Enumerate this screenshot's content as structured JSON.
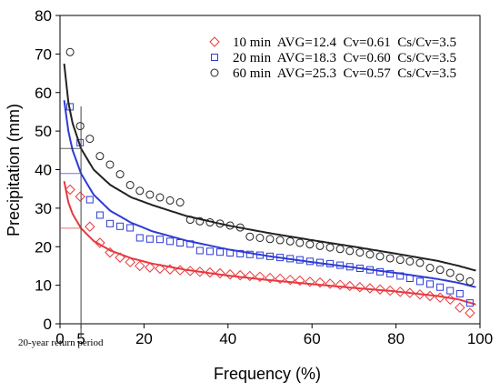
{
  "chart_data": {
    "type": "scatter",
    "title": "",
    "xlabel": "Frequency (%)",
    "ylabel": "Precipitation (mm)",
    "xlim": [
      0,
      100
    ],
    "ylim": [
      0,
      80
    ],
    "xticks": [
      0,
      20,
      40,
      60,
      80,
      100
    ],
    "xtick_labels": [
      "0",
      "20",
      "40",
      "60",
      "80",
      "100"
    ],
    "extra_xtick": {
      "value": 5,
      "label": "5"
    },
    "yticks": [
      0,
      10,
      20,
      30,
      40,
      50,
      60,
      70,
      80
    ],
    "ytick_labels": [
      "0",
      "10",
      "20",
      "30",
      "40",
      "50",
      "60",
      "70",
      "80"
    ],
    "grid": false,
    "legend_position": "top-right",
    "annotation": {
      "text": "20-year return period",
      "x": 5
    },
    "series": [
      {
        "name": "10 min  AVG=12.4  Cv=0.61  Cs/Cv=3.5",
        "color": "#e8383d",
        "marker": "diamond",
        "x": [
          2.4,
          4.8,
          7.1,
          9.5,
          11.9,
          14.3,
          16.7,
          19.0,
          21.4,
          23.8,
          26.2,
          28.6,
          31.0,
          33.3,
          35.7,
          38.1,
          40.5,
          42.9,
          45.2,
          47.6,
          50.0,
          52.4,
          54.8,
          57.1,
          59.5,
          61.9,
          64.3,
          66.7,
          69.0,
          71.4,
          73.8,
          76.2,
          78.6,
          81.0,
          83.3,
          85.7,
          88.1,
          90.5,
          92.9,
          95.2,
          97.6
        ],
        "values": [
          34.8,
          33.0,
          25.2,
          21.0,
          18.5,
          17.2,
          16.0,
          15.0,
          14.6,
          14.3,
          14.1,
          13.9,
          13.7,
          13.5,
          13.3,
          13.1,
          12.8,
          12.6,
          12.4,
          12.2,
          11.9,
          11.7,
          11.4,
          11.2,
          10.9,
          10.7,
          10.4,
          10.1,
          9.8,
          9.5,
          9.2,
          8.9,
          8.6,
          8.3,
          8.0,
          7.6,
          7.2,
          6.8,
          6.3,
          4.2,
          2.8
        ],
        "fit_curve": {
          "x": [
            1,
            2,
            3,
            5,
            8,
            12,
            17,
            22,
            30,
            40,
            50,
            60,
            70,
            80,
            90,
            95,
            99
          ],
          "values": [
            37.0,
            31.5,
            28.5,
            24.8,
            21.5,
            19.0,
            17.0,
            15.6,
            14.0,
            12.5,
            11.3,
            10.3,
            9.3,
            8.4,
            7.2,
            6.3,
            5.0
          ]
        }
      },
      {
        "name": "20 min  AVG=18.3  Cv=0.60  Cs/Cv=3.5",
        "color": "#2e3bd6",
        "marker": "square",
        "x": [
          2.4,
          4.8,
          7.1,
          9.5,
          11.9,
          14.3,
          16.7,
          19.0,
          21.4,
          23.8,
          26.2,
          28.6,
          31.0,
          33.3,
          35.7,
          38.1,
          40.5,
          42.9,
          45.2,
          47.6,
          50.0,
          52.4,
          54.8,
          57.1,
          59.5,
          61.9,
          64.3,
          66.7,
          69.0,
          71.4,
          73.8,
          76.2,
          78.6,
          81.0,
          83.3,
          85.7,
          88.1,
          90.5,
          92.9,
          95.2,
          97.6
        ],
        "values": [
          56.3,
          47.0,
          32.2,
          28.2,
          26.0,
          25.3,
          24.9,
          22.3,
          22.0,
          21.9,
          21.4,
          21.0,
          20.7,
          19.0,
          18.8,
          18.6,
          18.4,
          18.2,
          18.0,
          17.8,
          17.5,
          17.2,
          16.9,
          16.6,
          16.2,
          15.9,
          15.6,
          15.2,
          14.8,
          14.4,
          14.0,
          13.5,
          13.0,
          12.4,
          11.8,
          11.0,
          10.3,
          9.5,
          8.6,
          7.8,
          5.4
        ],
        "fit_curve": {
          "x": [
            1,
            2,
            3,
            5,
            8,
            12,
            17,
            22,
            30,
            40,
            50,
            60,
            70,
            80,
            90,
            95,
            99
          ],
          "values": [
            58.0,
            50.0,
            45.0,
            39.0,
            33.5,
            29.3,
            26.2,
            24.0,
            21.6,
            19.3,
            17.5,
            16.0,
            14.6,
            13.2,
            11.6,
            10.6,
            9.5
          ]
        }
      },
      {
        "name": "60 min  AVG=25.3  Cv=0.57  Cs/Cv=3.5",
        "color": "#222222",
        "marker": "circle",
        "x": [
          2.4,
          4.8,
          7.1,
          9.5,
          11.9,
          14.3,
          16.7,
          19.0,
          21.4,
          23.8,
          26.2,
          28.6,
          31.0,
          33.3,
          35.7,
          38.1,
          40.5,
          42.9,
          45.2,
          47.6,
          50.0,
          52.4,
          54.8,
          57.1,
          59.5,
          61.9,
          64.3,
          66.7,
          69.0,
          71.4,
          73.8,
          76.2,
          78.6,
          81.0,
          83.3,
          85.7,
          88.1,
          90.5,
          92.9,
          95.2,
          97.6
        ],
        "values": [
          70.5,
          51.3,
          48.0,
          43.5,
          41.3,
          38.8,
          36.0,
          34.5,
          33.5,
          32.8,
          32.0,
          31.5,
          27.0,
          26.6,
          26.3,
          26.0,
          25.5,
          25.0,
          22.6,
          22.3,
          22.0,
          21.7,
          21.4,
          21.0,
          20.6,
          20.2,
          19.8,
          19.4,
          18.9,
          18.5,
          18.0,
          17.5,
          17.0,
          16.6,
          16.2,
          15.8,
          14.5,
          14.0,
          13.2,
          12.0,
          11.0
        ],
        "fit_curve": {
          "x": [
            1,
            2,
            3,
            5,
            8,
            12,
            17,
            22,
            30,
            40,
            50,
            60,
            70,
            80,
            90,
            95,
            99
          ],
          "values": [
            67.5,
            57.5,
            52.0,
            45.5,
            40.0,
            36.0,
            32.8,
            30.8,
            28.0,
            25.5,
            23.5,
            21.7,
            20.0,
            18.2,
            16.3,
            15.0,
            13.8
          ]
        }
      }
    ]
  }
}
